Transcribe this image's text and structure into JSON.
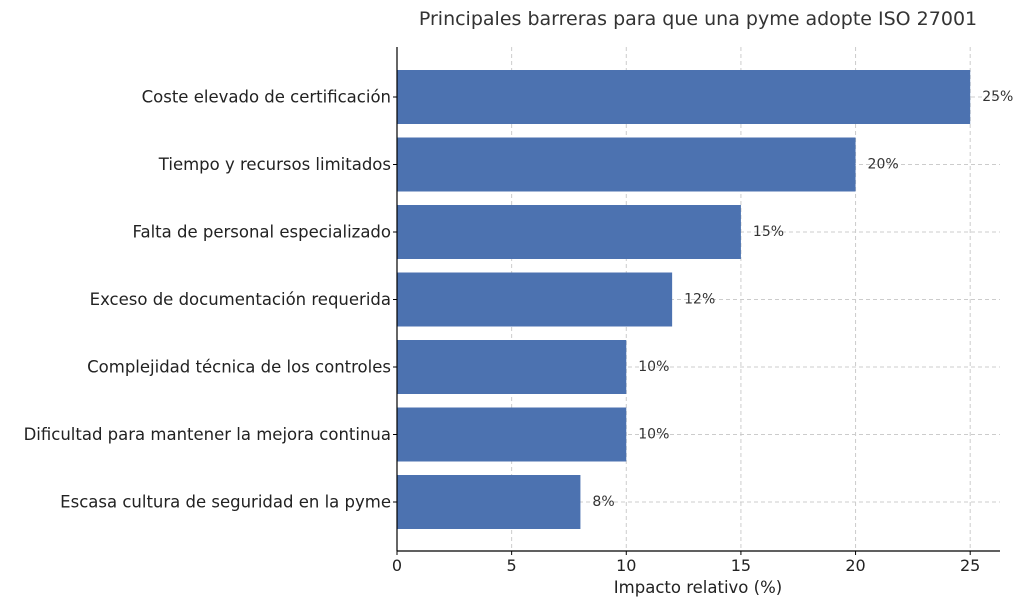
{
  "chart_data": {
    "type": "bar",
    "orientation": "horizontal",
    "title": "Principales barreras para que una pyme adopte ISO 27001",
    "xlabel": "Impacto relativo (%)",
    "ylabel": "",
    "categories": [
      "Coste elevado de certificación",
      "Tiempo y recursos limitados",
      "Falta de personal especializado",
      "Exceso de documentación requerida",
      "Complejidad técnica de los controles",
      "Dificultad para mantener la mejora continua",
      "Escasa cultura de seguridad en la pyme"
    ],
    "values": [
      25,
      20,
      15,
      12,
      10,
      10,
      8
    ],
    "value_labels": [
      "25%",
      "20%",
      "15%",
      "12%",
      "10%",
      "10%",
      "8%"
    ],
    "xlim": [
      0,
      26.3
    ],
    "xticks": [
      0,
      5,
      10,
      15,
      20,
      25
    ],
    "xtick_labels": [
      "0",
      "5",
      "10",
      "15",
      "20",
      "25"
    ],
    "grid": true,
    "bar_color": "#4c72b0"
  }
}
